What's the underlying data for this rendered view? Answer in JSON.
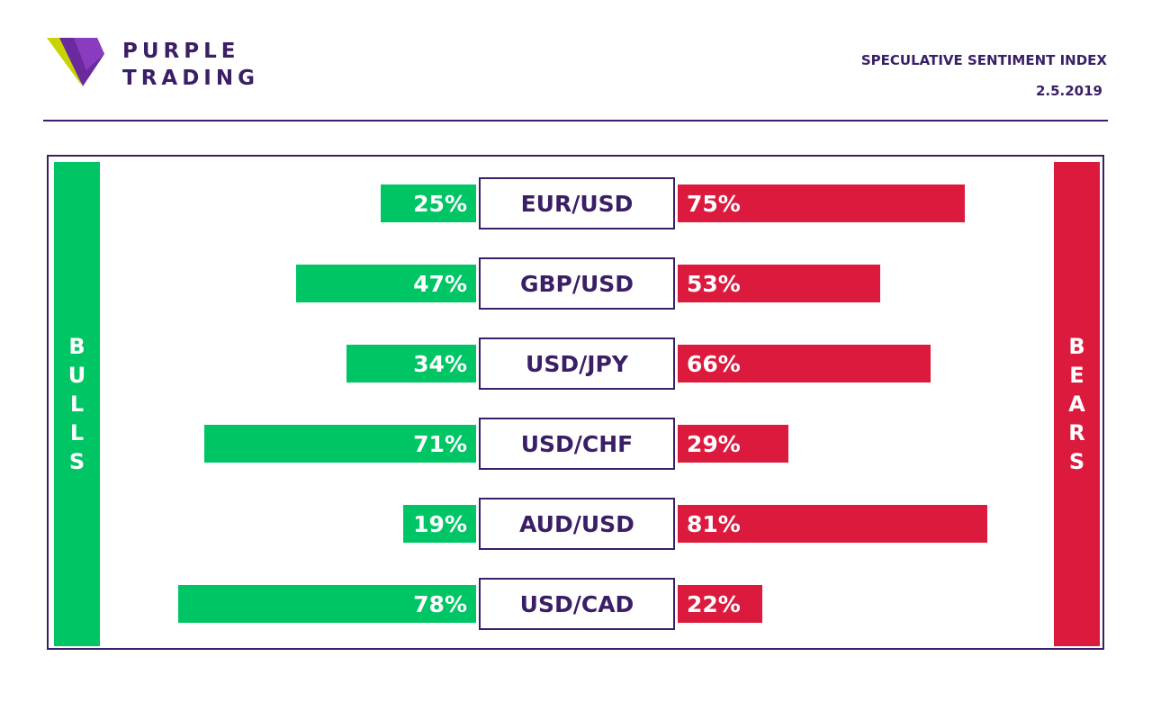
{
  "header": {
    "brand_line1": "PURPLE",
    "brand_line2": "TRADING",
    "index_title": "SPECULATIVE SENTIMENT INDEX",
    "date": "2.5.2019"
  },
  "sides": {
    "bulls": "BULLS",
    "bears": "BEARS"
  },
  "colors": {
    "bulls": "#00c565",
    "bears": "#dc1a3e",
    "brand": "#3a1f66"
  },
  "chart_data": {
    "type": "bar",
    "categories": [
      "EUR/USD",
      "GBP/USD",
      "USD/JPY",
      "USD/CHF",
      "AUD/USD",
      "USD/CAD"
    ],
    "series": [
      {
        "name": "BULLS",
        "values": [
          25,
          47,
          34,
          71,
          19,
          78
        ],
        "labels": [
          "25%",
          "47%",
          "34%",
          "71%",
          "19%",
          "78%"
        ]
      },
      {
        "name": "BEARS",
        "values": [
          75,
          53,
          66,
          29,
          81,
          22
        ],
        "labels": [
          "75%",
          "53%",
          "66%",
          "29%",
          "81%",
          "22%"
        ]
      }
    ],
    "ylim": [
      0,
      100
    ]
  }
}
